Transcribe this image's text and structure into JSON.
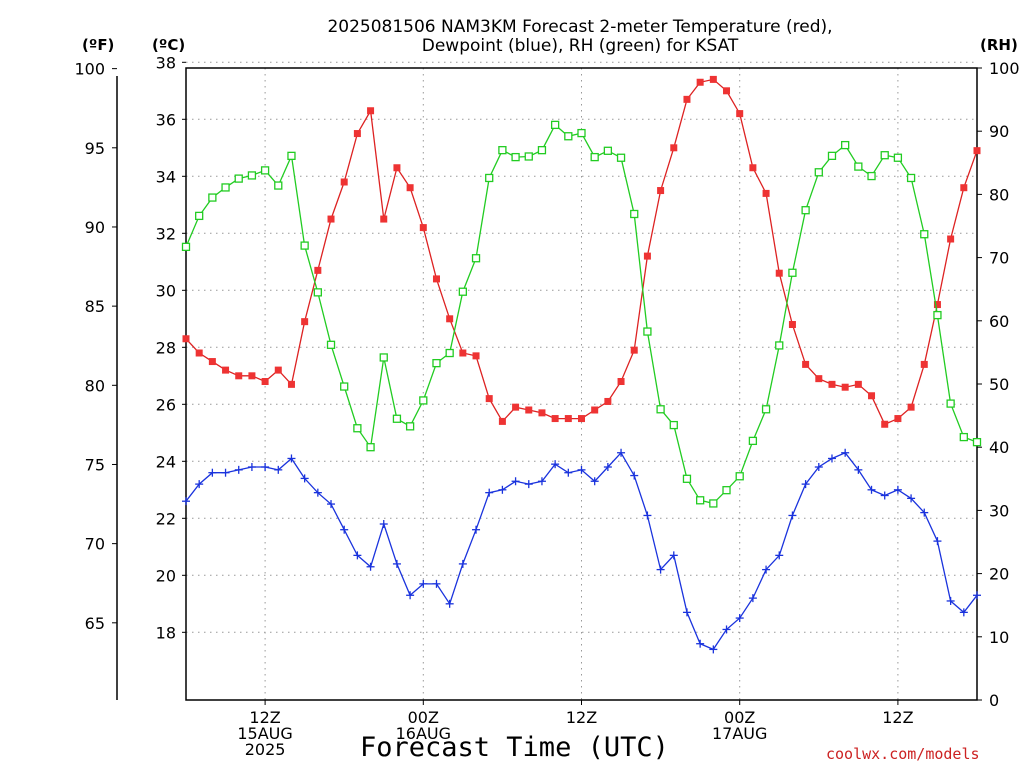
{
  "chart_data": {
    "type": "line",
    "title_line1": "2025081506 NAM3KM Forecast 2-meter Temperature (red),",
    "title_line2": "Dewpoint (blue), RH (green) for KSAT",
    "xlabel": "Forecast Time (UTC)",
    "left_unit_f": "(ºF)",
    "left_unit_c": "(ºC)",
    "right_unit": "(RH)",
    "credit": "coolwx.com/models",
    "xlim": [
      0,
      60
    ],
    "ylim_c": [
      15.625,
      37.8
    ],
    "ylim_rh": [
      0,
      100
    ],
    "grid": true,
    "x_ticks": [
      {
        "x": 6,
        "lines": [
          "12Z",
          "15AUG",
          "2025"
        ]
      },
      {
        "x": 18,
        "lines": [
          "00Z",
          "16AUG"
        ]
      },
      {
        "x": 30,
        "lines": [
          "12Z"
        ]
      },
      {
        "x": 42,
        "lines": [
          "00Z",
          "17AUG"
        ]
      },
      {
        "x": 54,
        "lines": [
          "12Z"
        ]
      }
    ],
    "c_ticks": [
      18,
      20,
      22,
      24,
      26,
      28,
      30,
      32,
      34,
      36,
      38
    ],
    "f_ticks": [
      65,
      70,
      75,
      80,
      85,
      90,
      95,
      100
    ],
    "rh_ticks": [
      0,
      10,
      20,
      30,
      40,
      50,
      60,
      70,
      80,
      90,
      100
    ],
    "colors": {
      "temperature": "#dd2222",
      "dewpoint": "#1a33dd",
      "rh": "#22cc22",
      "temperature_marker": "#ee3333",
      "grid": "#999999"
    },
    "series": [
      {
        "name": "Temperature (red)",
        "axis": "c",
        "x": [
          0,
          1,
          2,
          3,
          4,
          5,
          6,
          7,
          8,
          9,
          10,
          11,
          12,
          13,
          14,
          15,
          16,
          17,
          18,
          19,
          20,
          21,
          22,
          23,
          24,
          25,
          26,
          27,
          28,
          29,
          30,
          31,
          32,
          33,
          34,
          35,
          36,
          37,
          38,
          39,
          40,
          41,
          42,
          43,
          44,
          45,
          46,
          47,
          48,
          49,
          50,
          51,
          52,
          53,
          54,
          55,
          56,
          57,
          58,
          59,
          60
        ],
        "values": [
          28.3,
          27.8,
          27.5,
          27.2,
          27.0,
          27.0,
          26.8,
          27.2,
          26.7,
          28.9,
          30.7,
          32.5,
          33.8,
          35.5,
          36.3,
          32.5,
          34.3,
          33.6,
          32.2,
          30.4,
          29.0,
          27.8,
          27.7,
          26.2,
          25.4,
          25.9,
          25.8,
          25.7,
          25.5,
          25.5,
          25.5,
          25.8,
          26.1,
          26.8,
          27.9,
          31.2,
          33.5,
          35.0,
          36.7,
          37.3,
          37.4,
          37.0,
          36.2,
          34.3,
          33.4,
          30.6,
          28.8,
          27.4,
          26.9,
          26.7,
          26.6,
          26.7,
          26.3,
          25.3,
          25.5,
          25.9,
          27.4,
          29.5,
          31.8,
          33.6,
          34.9
        ]
      },
      {
        "name": "Dewpoint (blue)",
        "axis": "c",
        "x": [
          0,
          1,
          2,
          3,
          4,
          5,
          6,
          7,
          8,
          9,
          10,
          11,
          12,
          13,
          14,
          15,
          16,
          17,
          18,
          19,
          20,
          21,
          22,
          23,
          24,
          25,
          26,
          27,
          28,
          29,
          30,
          31,
          32,
          33,
          34,
          35,
          36,
          37,
          38,
          39,
          40,
          41,
          42,
          43,
          44,
          45,
          46,
          47,
          48,
          49,
          50,
          51,
          52,
          53,
          54,
          55,
          56,
          57,
          58,
          59,
          60
        ],
        "values": [
          22.6,
          23.2,
          23.6,
          23.6,
          23.7,
          23.8,
          23.8,
          23.7,
          24.1,
          23.4,
          22.9,
          22.5,
          21.6,
          20.7,
          20.3,
          21.8,
          20.4,
          19.3,
          19.7,
          19.7,
          19.0,
          20.4,
          21.6,
          22.9,
          23.0,
          23.3,
          23.2,
          23.3,
          23.9,
          23.6,
          23.7,
          23.3,
          23.8,
          24.3,
          23.5,
          22.1,
          20.2,
          20.7,
          18.7,
          17.6,
          17.4,
          18.1,
          18.5,
          19.2,
          20.2,
          20.7,
          22.1,
          23.2,
          23.8,
          24.1,
          24.3,
          23.7,
          23.0,
          22.8,
          23.0,
          22.7,
          22.2,
          21.2,
          19.1,
          18.7,
          19.3
        ]
      },
      {
        "name": "RH (green)",
        "axis": "rh",
        "x": [
          0,
          1,
          2,
          3,
          4,
          5,
          6,
          7,
          8,
          9,
          10,
          11,
          12,
          13,
          14,
          15,
          16,
          17,
          18,
          19,
          20,
          21,
          22,
          23,
          24,
          25,
          26,
          27,
          28,
          29,
          30,
          31,
          32,
          33,
          34,
          35,
          36,
          37,
          38,
          39,
          40,
          41,
          42,
          43,
          44,
          45,
          46,
          47,
          48,
          49,
          50,
          51,
          52,
          53,
          54,
          55,
          56,
          57,
          58,
          59,
          60
        ],
        "values": [
          71.7,
          76.6,
          79.5,
          81.1,
          82.5,
          83.0,
          83.8,
          81.4,
          86.1,
          71.9,
          64.5,
          56.2,
          49.6,
          43.0,
          40.0,
          54.2,
          44.5,
          43.3,
          47.4,
          53.3,
          54.9,
          64.6,
          69.9,
          82.6,
          87.0,
          85.9,
          86.0,
          87.0,
          91.0,
          89.2,
          89.7,
          85.9,
          86.9,
          85.8,
          76.9,
          58.3,
          46.0,
          43.5,
          35.0,
          31.6,
          31.1,
          33.2,
          35.4,
          41.0,
          46.0,
          56.1,
          67.6,
          77.5,
          83.5,
          86.1,
          87.8,
          84.4,
          82.9,
          86.2,
          85.8,
          82.6,
          73.7,
          60.9,
          46.9,
          41.6,
          40.8
        ]
      }
    ]
  }
}
